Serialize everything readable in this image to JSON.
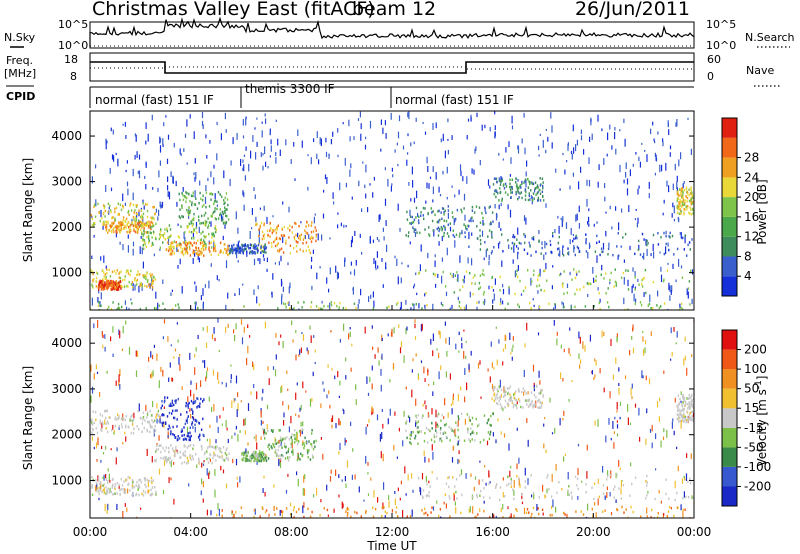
{
  "title": "Christmas Valley East (fitACF)",
  "beam_label": "beam 12",
  "date": "26/Jun/2011",
  "header": {
    "nsky_label": "N.Sky",
    "nsky_ticks": [
      "10^5",
      "10^0"
    ],
    "nsearch_label": "N.Search",
    "freq_label": "Freq.",
    "freq_unit": "[MHz]",
    "freq_ticks": [
      "18",
      "8"
    ],
    "nave_label": "Nave",
    "nave_ticks": [
      "60",
      "0"
    ],
    "cpid_label": "CPID",
    "cpid_segments": [
      {
        "label": "normal (fast) 151 IF",
        "start_hour": 0,
        "end_hour": 6
      },
      {
        "label": "themis 3300 IF",
        "start_hour": 6,
        "end_hour": 12
      },
      {
        "label": "normal (fast) 151 IF",
        "start_hour": 12,
        "end_hour": 24
      }
    ]
  },
  "colors": {
    "power": [
      "#1530d8",
      "#3a5fcd",
      "#3e8c5c",
      "#4aa84a",
      "#7ec44a",
      "#e8d838",
      "#f0a020",
      "#f06818",
      "#e02010"
    ],
    "velocity": [
      "#1a28c8",
      "#3858d0",
      "#3a8a4a",
      "#7cc04a",
      "#c8c8c8",
      "#f0c030",
      "#f09020",
      "#f05818",
      "#e01010"
    ]
  },
  "chart_data": [
    {
      "type": "heatmap",
      "panel": "power",
      "ylabel": "Slant Range [km]",
      "yticks": [
        1000,
        2000,
        3000,
        4000
      ],
      "ylim": [
        180,
        4550
      ],
      "xlim_hours": [
        0,
        24
      ],
      "colorbar_label": "Power [dB]",
      "colorbar_ticks": [
        "4",
        "8",
        "12",
        "16",
        "20",
        "24",
        "28"
      ],
      "regions": [
        {
          "t": [
            0.0,
            2.6
          ],
          "r": [
            2050,
            2550
          ],
          "level": 5
        },
        {
          "t": [
            0.6,
            2.4
          ],
          "r": [
            1900,
            2150
          ],
          "level": 6
        },
        {
          "t": [
            0.0,
            2.6
          ],
          "r": [
            700,
            1100
          ],
          "level": 5
        },
        {
          "t": [
            0.3,
            1.2
          ],
          "r": [
            650,
            850
          ],
          "level": 7
        },
        {
          "t": [
            2.0,
            5.0
          ],
          "r": [
            1550,
            2100
          ],
          "level": 4
        },
        {
          "t": [
            3.0,
            5.5
          ],
          "r": [
            1400,
            1700
          ],
          "level": 6
        },
        {
          "t": [
            3.5,
            5.5
          ],
          "r": [
            2100,
            2800
          ],
          "level": 3
        },
        {
          "t": [
            6.5,
            9.0
          ],
          "r": [
            1450,
            2150
          ],
          "level": 6
        },
        {
          "t": [
            5.5,
            7.0
          ],
          "r": [
            1450,
            1650
          ],
          "level": 1
        },
        {
          "t": [
            12.5,
            16.0
          ],
          "r": [
            1800,
            2500
          ],
          "level": 2
        },
        {
          "t": [
            13.0,
            24.0
          ],
          "r": [
            550,
            1100
          ],
          "level": 4
        },
        {
          "t": [
            15.0,
            24.0
          ],
          "r": [
            1400,
            1900
          ],
          "level": 1
        },
        {
          "t": [
            16.0,
            18.0
          ],
          "r": [
            2600,
            3100
          ],
          "level": 2
        },
        {
          "t": [
            0.0,
            24.0
          ],
          "r": [
            200,
            380
          ],
          "level": 4
        },
        {
          "t": [
            23.3,
            24.0
          ],
          "r": [
            2300,
            2900
          ],
          "level": 5
        }
      ]
    },
    {
      "type": "heatmap",
      "panel": "velocity",
      "ylabel": "Slant Range [km]",
      "yticks": [
        1000,
        2000,
        3000,
        4000
      ],
      "ylim": [
        180,
        4550
      ],
      "xlim_hours": [
        0,
        24
      ],
      "xlabel": "Time UT",
      "xticks": [
        "00:00",
        "04:00",
        "08:00",
        "12:00",
        "16:00",
        "20:00",
        "00:00"
      ],
      "colorbar_label": "Velocity [m s^-1]",
      "colorbar_ticks": [
        "-200",
        "-100",
        "-50",
        "-15",
        "15",
        "50",
        "100",
        "200"
      ],
      "regions": [
        {
          "t": [
            0.0,
            2.8
          ],
          "r": [
            2050,
            2550
          ],
          "level": 4
        },
        {
          "t": [
            0.0,
            2.6
          ],
          "r": [
            700,
            1100
          ],
          "level": 4
        },
        {
          "t": [
            2.8,
            4.5
          ],
          "r": [
            1900,
            2850
          ],
          "level": 0
        },
        {
          "t": [
            2.5,
            5.5
          ],
          "r": [
            1400,
            1800
          ],
          "level": 4
        },
        {
          "t": [
            6.8,
            9.0
          ],
          "r": [
            1450,
            2150
          ],
          "level": 3
        },
        {
          "t": [
            6.0,
            7.0
          ],
          "r": [
            1450,
            1650
          ],
          "level": 3
        },
        {
          "t": [
            12.5,
            16.0
          ],
          "r": [
            1800,
            2500
          ],
          "level": 3
        },
        {
          "t": [
            13.0,
            24.0
          ],
          "r": [
            600,
            1150
          ],
          "level": 4
        },
        {
          "t": [
            5.0,
            24.0
          ],
          "r": [
            200,
            450
          ],
          "level": 6
        },
        {
          "t": [
            16.0,
            18.0
          ],
          "r": [
            2600,
            3100
          ],
          "level": 4
        },
        {
          "t": [
            23.3,
            24.0
          ],
          "r": [
            2300,
            2900
          ],
          "level": 4
        }
      ]
    }
  ]
}
